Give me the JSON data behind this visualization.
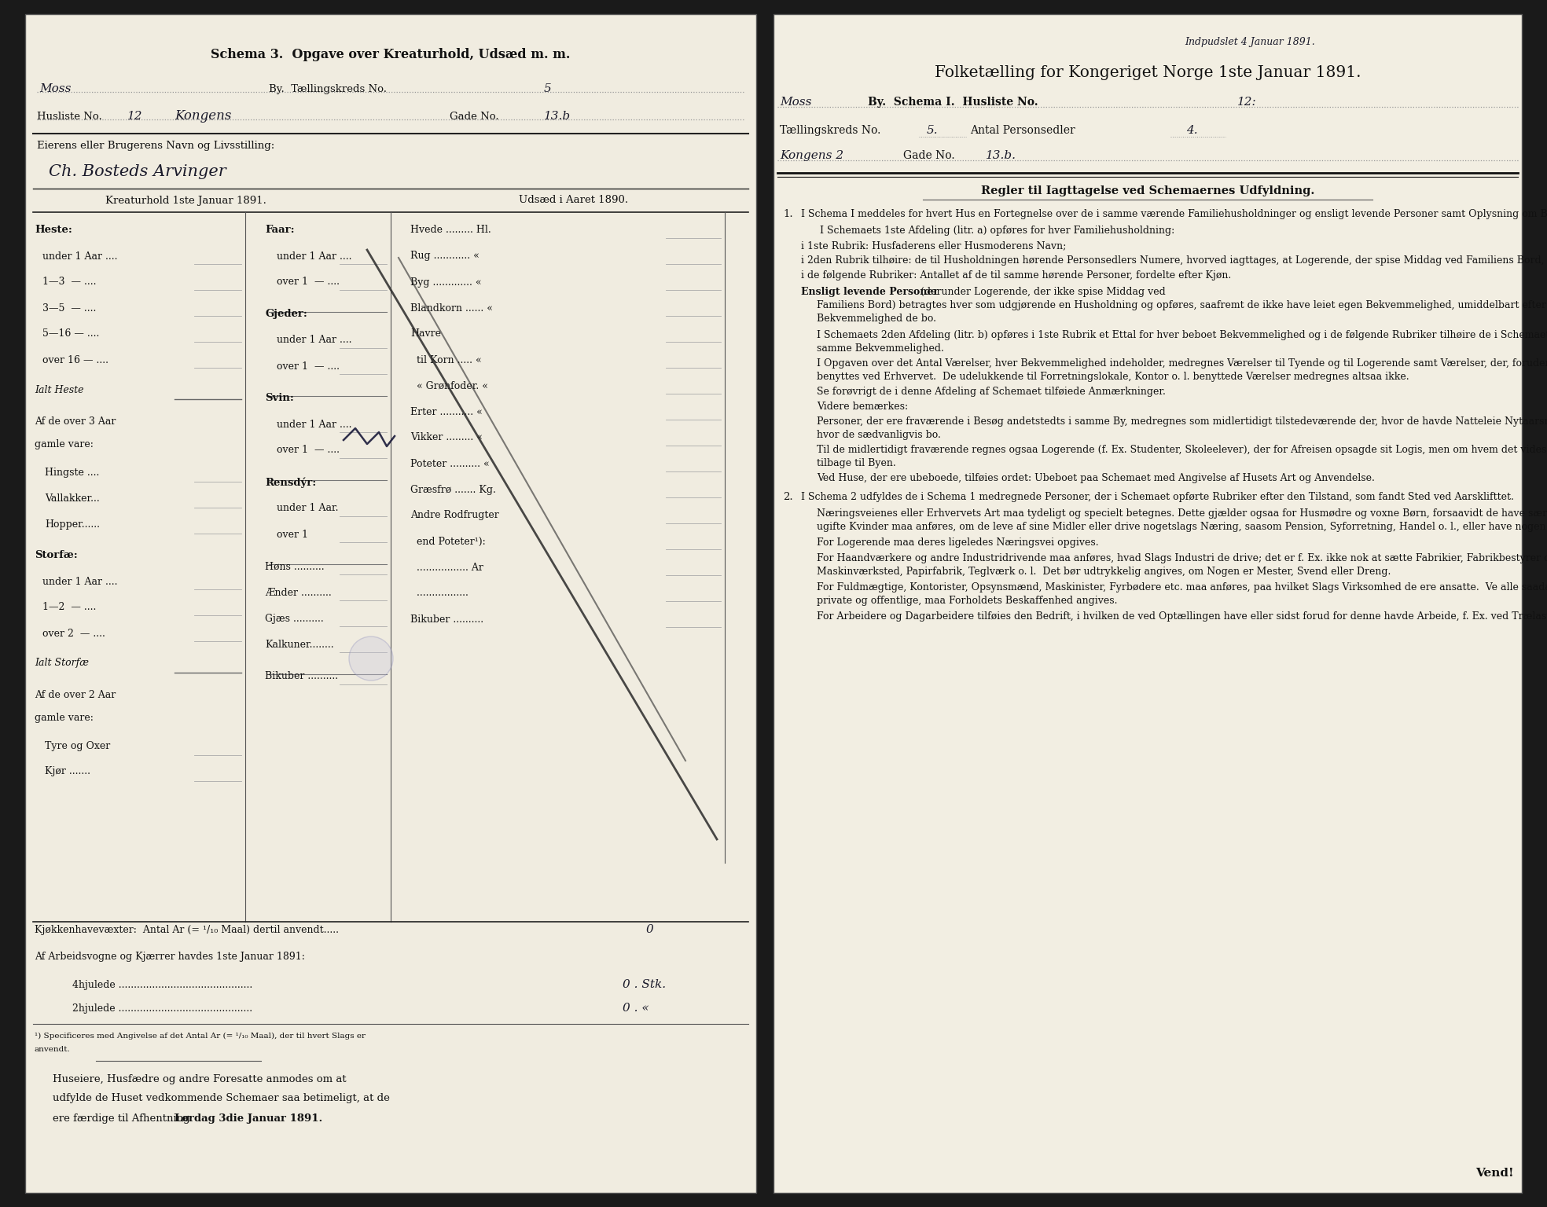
{
  "bg_color": "#1a1a1a",
  "page_bg_left": "#f0ece0",
  "page_bg_right": "#f2eee2",
  "border_color": "#111111",
  "text_color": "#111111",
  "handwriting_color": "#1a1a2a",
  "dotted_color": "#888888",
  "line_color": "#333333",
  "left_page": {
    "title": "Schema 3.  Opgave over Kreaturhold, Udsæd m. m.",
    "hand_city": "Moss",
    "print_by": "By.  Tællingskreds No.",
    "hand_no": "5",
    "print_husliste": "Husliste No.",
    "hand_husliste": "12",
    "hand_street": "Kongens",
    "print_gade": "Gade No.",
    "hand_gade": "13.b",
    "owner_label": "Eierens eller Brugerens Navn og Livsstilling:",
    "owner_hand": "Ch. Bosteds Arvinger",
    "col1_title": "Kreaturhold 1ste Januar 1891.",
    "col2_title": "Udsæd i Aaret 1890.",
    "heste_label": "Heste:",
    "heste_rows": [
      "under 1 Aar ....",
      "1—3  — ....",
      "3—5  — ....",
      "5—16 — ....",
      "over 16 — ...."
    ],
    "ialt_heste": "Ialt Heste",
    "af3_line1": "Af de over 3 Aar",
    "af3_line2": "gamle vare:",
    "hingste": "Hingste ....",
    "vallakker": "Vallakker...",
    "hopper": "Hopper......",
    "storfae_label": "Storfæ:",
    "storfae_rows": [
      "under 1 Aar ....",
      "1—2  — ....",
      "over 2  — ...."
    ],
    "ialt_storfae": "Ialt Storfæ",
    "af2_line1": "Af de over 2 Aar",
    "af2_line2": "gamle vare:",
    "tyre": "Tyre og Oxer",
    "kjoer": "Kjør .......",
    "faar_label": "Faar:",
    "faar_rows": [
      "under 1 Aar ....",
      "over 1  — ...."
    ],
    "gjeder_label": "Gjeder:",
    "gjeder_rows": [
      "under 1 Aar ....",
      "over 1  — ...."
    ],
    "svin_label": "Svin:",
    "svin_rows": [
      "under 1 Aar ....",
      "over 1  — ...."
    ],
    "rensdyr_label": "Rensdýr:",
    "rensdyr_rows": [
      "under 1 Aar.",
      "over 1"
    ],
    "hons": "Høns ..........",
    "aender": "Ænder ..........",
    "gaes": "Gjæs ..........",
    "kalkuner": "Kalkuner........",
    "bikuber": "Bikuber ..........",
    "udsaed": [
      "Hvede ......... Hl.",
      "Rug ............ «",
      "Byg ............. «",
      "Blandkorn ...... «",
      "Havre",
      "  til Korn ..... «",
      "  « Grønfoder. «",
      "Erter ........... «",
      "Vikker ......... «",
      "Poteter .......... «",
      "Græsfrø ....... Kg.",
      "Andre Rodfrugter",
      "  end Poteter¹):",
      "  ................. Ar",
      "  .................",
      "Bikuber .........."
    ],
    "kjoekken": "Kjøkkenhavevæxter:  Antal Ar (= ¹/₁₀ Maal) dertil anvendt.....",
    "kjoekken_hand": "0",
    "arbeid": "Af Arbeidsvogne og Kjærrer havdes 1ste Januar 1891:",
    "hjul4": "4hjulede ............................................",
    "hjul4_hand": "0 . Stk.",
    "hjul2": "2hjulede ............................................",
    "hjul2_hand": "0 . «",
    "footnote1": "¹) Specificeres med Angivelse af det Antal Ar (= ¹/₁₀ Maal), der til hvert Slags er",
    "footnote2": "anvendt.",
    "footer1": "Huseiere, Husfædre og andre Foresatte anmodes om at",
    "footer2": "udfylde de Huset vedkommende Schemaer saa betimeligt, at de",
    "footer3a": "ere færdige til Afhentning ",
    "footer3b": "Lørdag 3die Januar 1891."
  },
  "right_page": {
    "hand_top": "Indpudslet 4 Januar 1891.",
    "title": "Folketælling for Kongeriget Norge 1ste Januar 1891.",
    "hand_city": "Moss",
    "print_by": "By.  Schema I.  Husliste No.",
    "hand_husliste": "12:",
    "print_taellingskreds": "Tællingskreds No.",
    "hand_tkreds": "5.",
    "print_antal": "Antal Personsedler",
    "hand_antal": "4.",
    "hand_street": "Kongens 2",
    "print_gade": "Gade No.",
    "hand_gade": "13.b.",
    "rules_title": "Regler til Iagttagelse ved Schemaernes Udfyldning.",
    "vend": "Vend!"
  }
}
